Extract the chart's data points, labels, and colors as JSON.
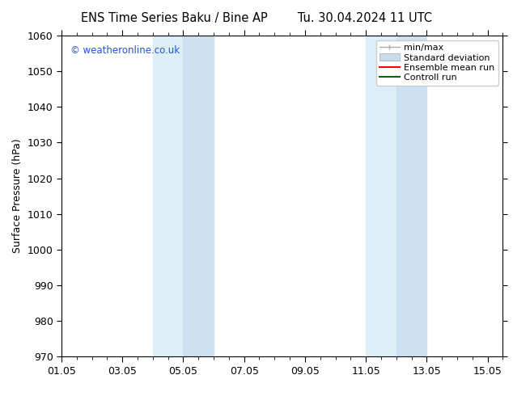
{
  "title_left": "ENS Time Series Baku / Bine AP",
  "title_right": "Tu. 30.04.2024 11 UTC",
  "ylabel": "Surface Pressure (hPa)",
  "ylim": [
    970,
    1060
  ],
  "yticks": [
    970,
    980,
    990,
    1000,
    1010,
    1020,
    1030,
    1040,
    1050,
    1060
  ],
  "xtick_labels": [
    "01.05",
    "03.05",
    "05.05",
    "07.05",
    "09.05",
    "11.05",
    "13.05",
    "15.05"
  ],
  "xtick_positions": [
    0,
    2,
    4,
    6,
    8,
    10,
    12,
    14
  ],
  "xlim": [
    0,
    14.5
  ],
  "shaded_bands": [
    {
      "x_start": 3.0,
      "x_end": 4.0
    },
    {
      "x_start": 4.0,
      "x_end": 5.0
    },
    {
      "x_start": 10.0,
      "x_end": 11.0
    },
    {
      "x_start": 11.0,
      "x_end": 12.0
    }
  ],
  "band_colors": [
    "#ddeef8",
    "#cce4f4",
    "#ddeef8",
    "#cce4f4"
  ],
  "band_color": "#daeaf6",
  "watermark": "© weatheronline.co.uk",
  "watermark_color": "#2255cc",
  "legend_labels": [
    "min/max",
    "Standard deviation",
    "Ensemble mean run",
    "Controll run"
  ],
  "legend_colors_line": [
    "#999999",
    "#bbccdd",
    "#ff0000",
    "#006600"
  ],
  "bg_color": "#ffffff",
  "spine_color": "#000000",
  "tick_color": "#000000",
  "font_size": 9,
  "title_font_size": 10.5
}
